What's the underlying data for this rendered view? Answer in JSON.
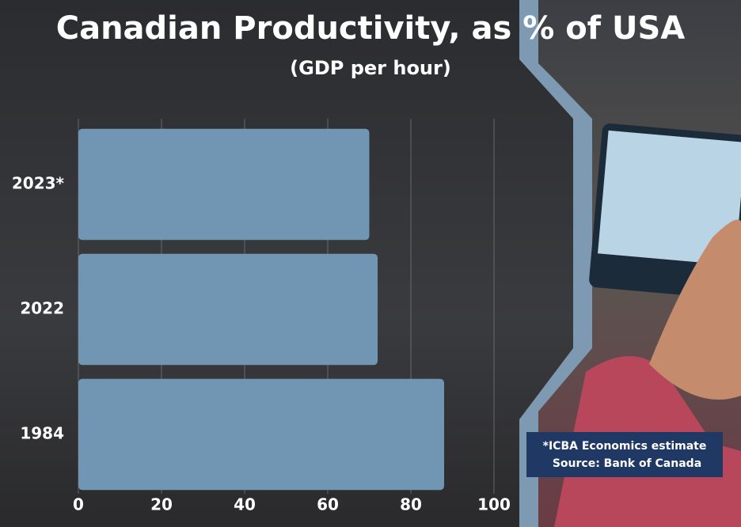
{
  "chart_data": {
    "type": "hbar",
    "title": "Canadian Productivity, as % of USA",
    "subtitle": "(GDP per hour)",
    "categories": [
      "2023*",
      "2022",
      "1984"
    ],
    "values": [
      70,
      72,
      88
    ],
    "color": "#7096b4",
    "xlim": [
      0,
      100
    ],
    "xticks": [
      0,
      20,
      40,
      60,
      80,
      100
    ],
    "grid": true,
    "annotations": [
      "*ICBA Economics estimate",
      "Source: Bank of Canada"
    ]
  }
}
